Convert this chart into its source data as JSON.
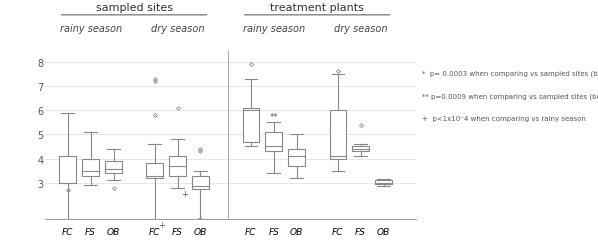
{
  "title_left": "sampled sites",
  "title_right": "treatment plants",
  "subtitle_ll": "rainy season",
  "subtitle_lr": "dry season",
  "subtitle_rl": "rainy season",
  "subtitle_rr": "dry season",
  "xlabel_groups": [
    "FC",
    "FS",
    "OB"
  ],
  "ylim": [
    1.5,
    8.5
  ],
  "yticks": [
    3,
    4,
    5,
    6,
    7,
    8
  ],
  "bg_color": "#ffffff",
  "legend_lines": [
    "*  p= 0.0003 when comparing vs sampled sites (both seasons)",
    "** p=0.0009 when comparing vs sampled sites (both seasons)",
    "+  p<1x10⁻4 when comparing vs rainy season"
  ],
  "groups": {
    "sampled_rainy": {
      "FC": {
        "q1": 3.0,
        "median": 3.0,
        "q3": 4.1,
        "whislo": 1.5,
        "whishi": 5.9,
        "fliers": [
          2.7
        ]
      },
      "FS": {
        "q1": 3.3,
        "median": 3.5,
        "q3": 4.0,
        "whislo": 2.9,
        "whishi": 5.1,
        "fliers": []
      },
      "OB": {
        "q1": 3.4,
        "median": 3.55,
        "q3": 3.9,
        "whislo": 3.1,
        "whishi": 4.4,
        "fliers": [
          2.8
        ]
      }
    },
    "sampled_dry": {
      "FC": {
        "q1": 3.2,
        "median": 3.3,
        "q3": 3.8,
        "whislo": 1.5,
        "whishi": 4.6,
        "fliers": [
          5.8,
          7.2,
          7.3
        ]
      },
      "FS": {
        "q1": 3.3,
        "median": 3.7,
        "q3": 4.1,
        "whislo": 2.8,
        "whishi": 4.8,
        "fliers": [
          6.1
        ]
      },
      "OB": {
        "q1": 2.75,
        "median": 2.85,
        "q3": 3.3,
        "whislo": 1.5,
        "whishi": 3.5,
        "fliers": [
          4.4,
          4.3,
          1.5
        ]
      }
    },
    "treatment_rainy": {
      "FC": {
        "q1": 4.7,
        "median": 6.0,
        "q3": 6.1,
        "whislo": 4.5,
        "whishi": 7.3,
        "fliers": [
          7.9
        ]
      },
      "FS": {
        "q1": 4.3,
        "median": 4.5,
        "q3": 5.1,
        "whislo": 3.4,
        "whishi": 5.5,
        "fliers": [],
        "annotation": "**"
      },
      "OB": {
        "q1": 3.7,
        "median": 4.1,
        "q3": 4.4,
        "whislo": 3.2,
        "whishi": 5.0,
        "fliers": []
      }
    },
    "treatment_dry": {
      "FC": {
        "q1": 4.0,
        "median": 4.1,
        "q3": 6.0,
        "whislo": 3.5,
        "whishi": 7.5,
        "fliers": [
          7.6
        ]
      },
      "FS": {
        "q1": 4.3,
        "median": 4.4,
        "q3": 4.5,
        "whislo": 4.1,
        "whishi": 4.6,
        "fliers": [
          5.4
        ]
      },
      "OB": {
        "q1": 2.95,
        "median": 3.0,
        "q3": 3.1,
        "whislo": 2.85,
        "whishi": 3.15,
        "fliers": []
      }
    }
  },
  "annotations": {
    "treatment_rainy": {
      "FS": "**"
    }
  },
  "flier_annotations": {
    "sampled_dry": {
      "FC": "+",
      "FS": "+"
    }
  }
}
